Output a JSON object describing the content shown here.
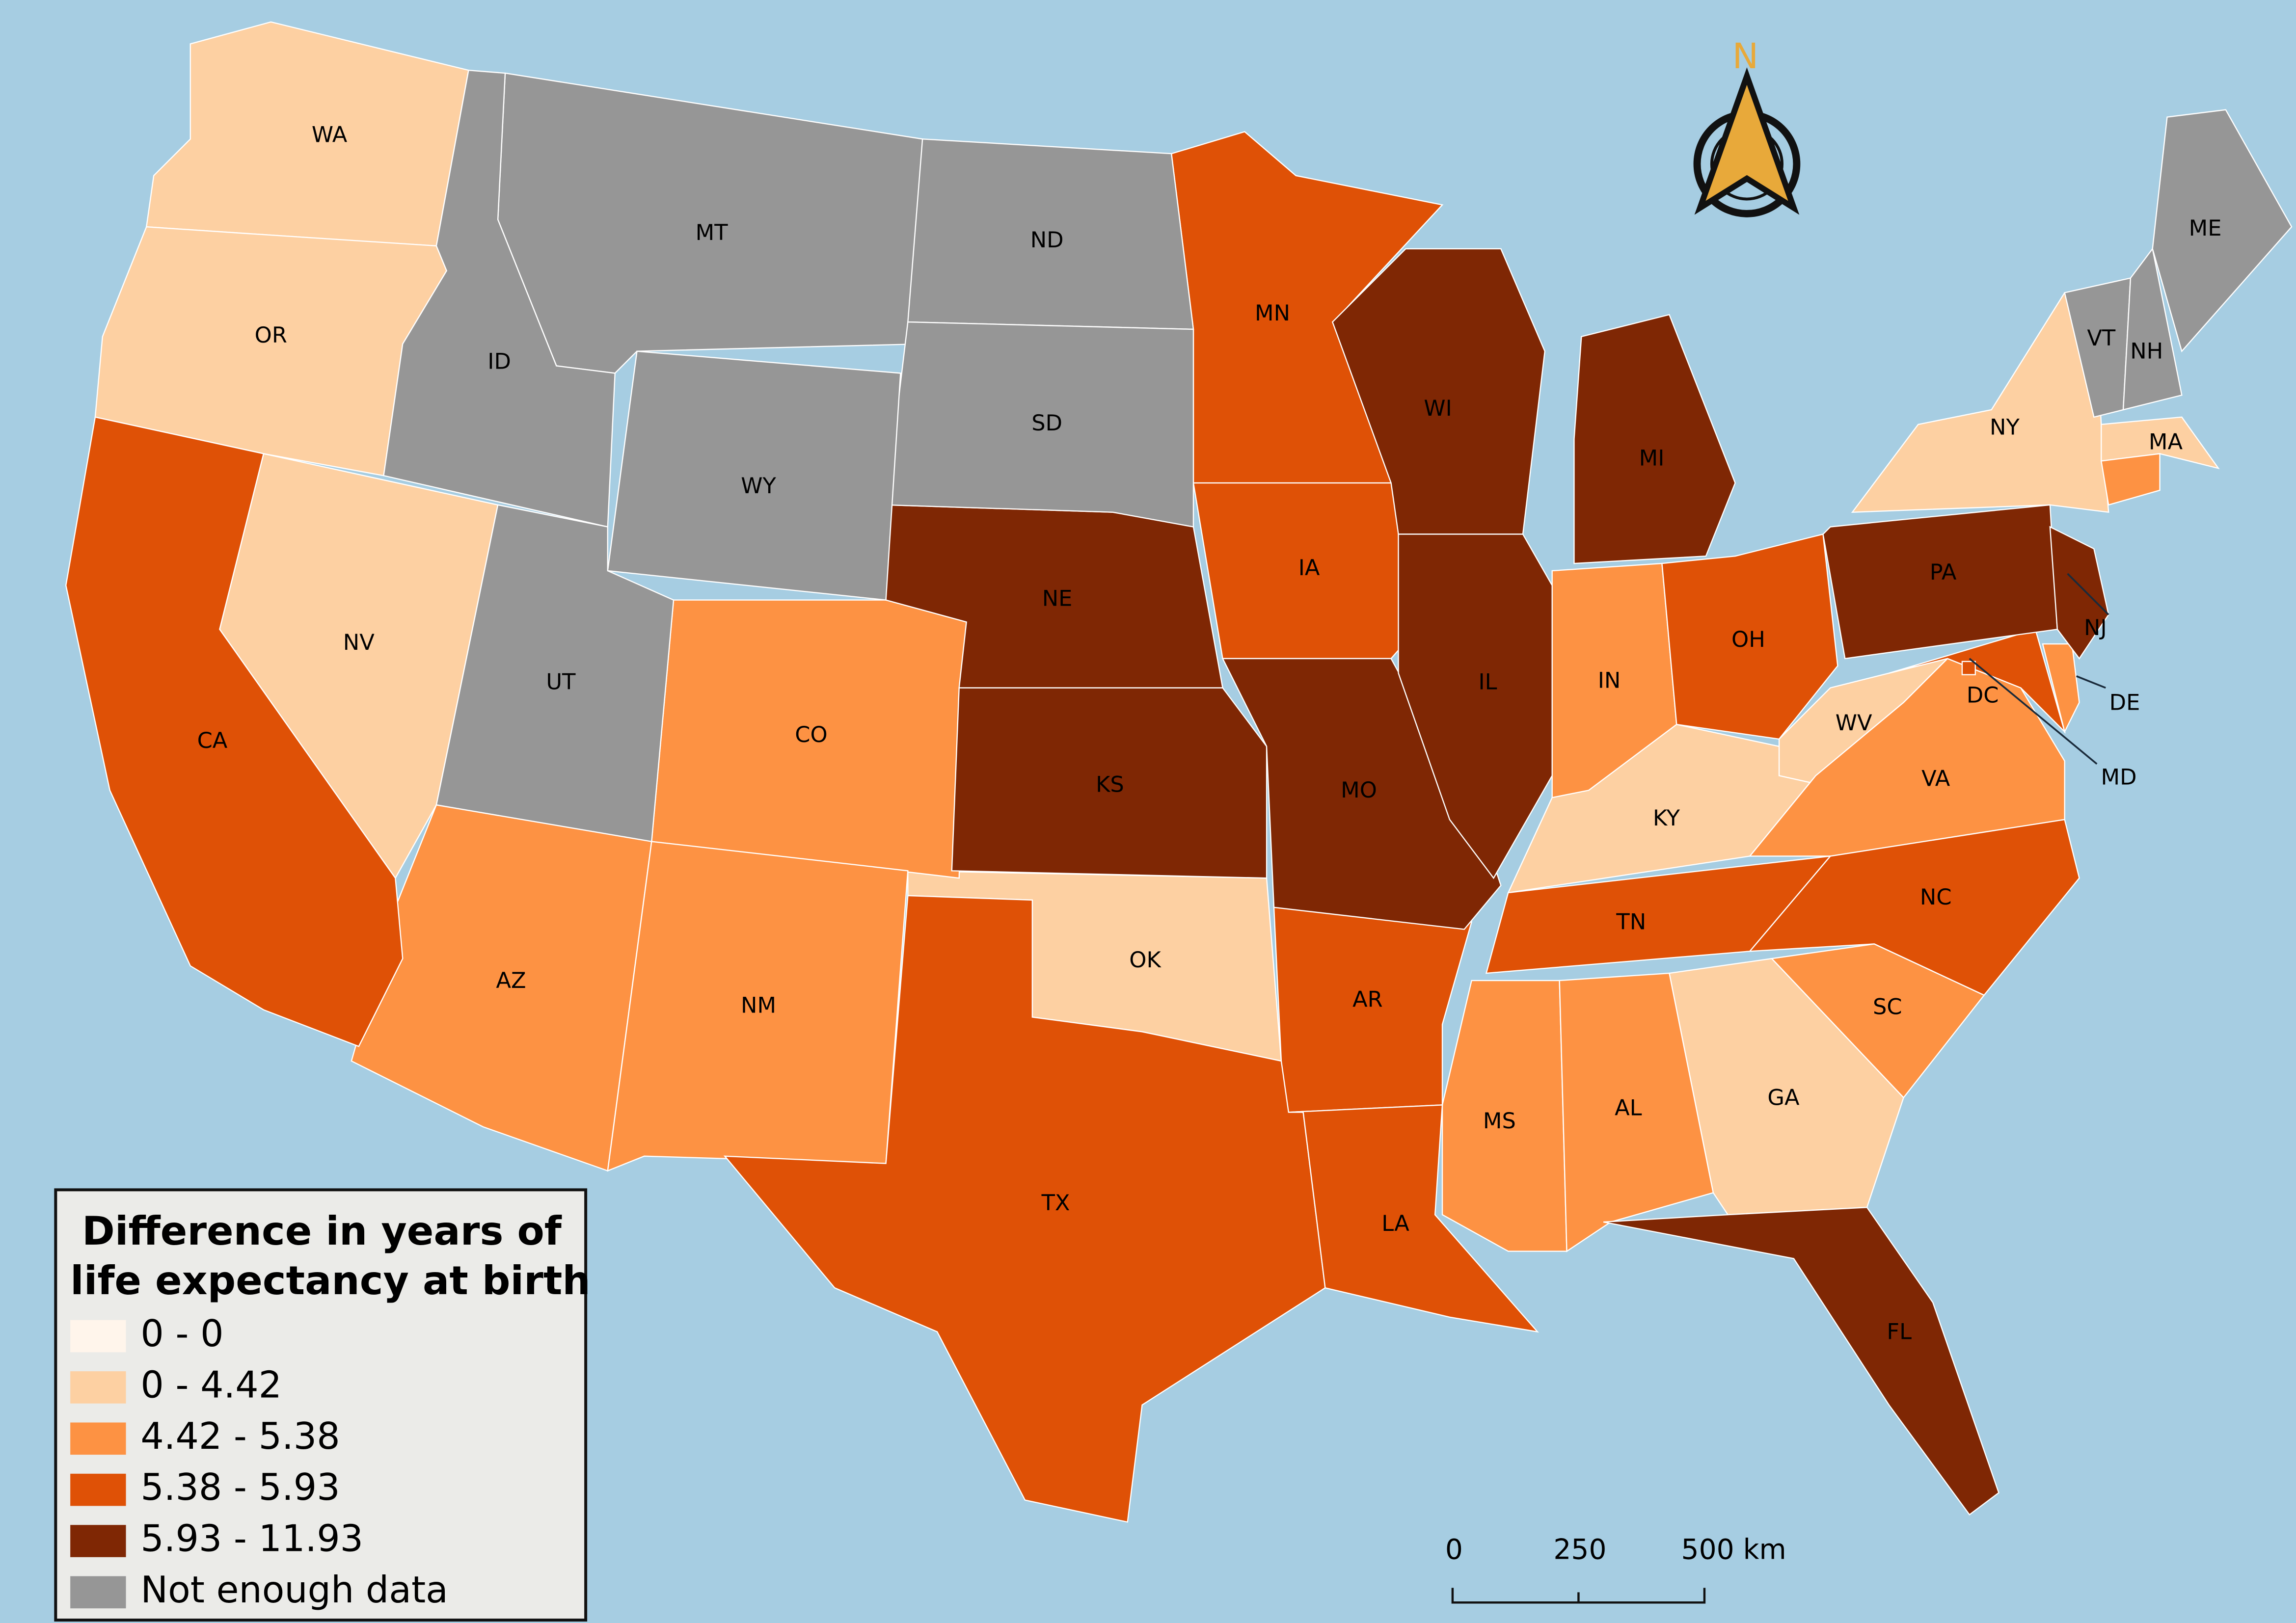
{
  "map": {
    "north_arrow": {
      "label": "N"
    },
    "scale_bar": {
      "labels": [
        "0",
        "250",
        "500 km"
      ]
    },
    "legend": {
      "title": [
        "Difference in years of",
        "life expectancy at birth"
      ],
      "items": [
        {
          "label": "0 - 0",
          "color": "#fff5eb",
          "states": []
        },
        {
          "label": "0 - 4.42",
          "color": "#fdd0a2",
          "states": [
            "WA",
            "OR",
            "NV",
            "NY",
            "MA",
            "OK",
            "KY",
            "WV",
            "GA"
          ]
        },
        {
          "label": "4.42 - 5.38",
          "color": "#fd9243",
          "states": [
            "CO",
            "AZ",
            "NM",
            "IN",
            "VA",
            "SC",
            "MS",
            "AL",
            null,
            "DE"
          ]
        },
        {
          "label": "5.38 - 5.93",
          "color": "#df5106",
          "states": [
            "CA",
            "MN",
            "IA",
            "OH",
            "TX",
            "AR",
            "LA",
            "TN",
            "NC",
            "MD",
            "DC"
          ]
        },
        {
          "label": "5.93 - 11.93",
          "color": "#7f2704",
          "states": [
            "NE",
            "KS",
            "MO",
            "WI",
            "IL",
            "MI",
            "PA",
            "NJ",
            "FL"
          ]
        },
        {
          "label": "Not enough data",
          "color": "#969696",
          "states": [
            "MT",
            "ID",
            "ND",
            "SD",
            "WY",
            "UT",
            "VT",
            "NH",
            "ME"
          ]
        }
      ]
    }
  }
}
